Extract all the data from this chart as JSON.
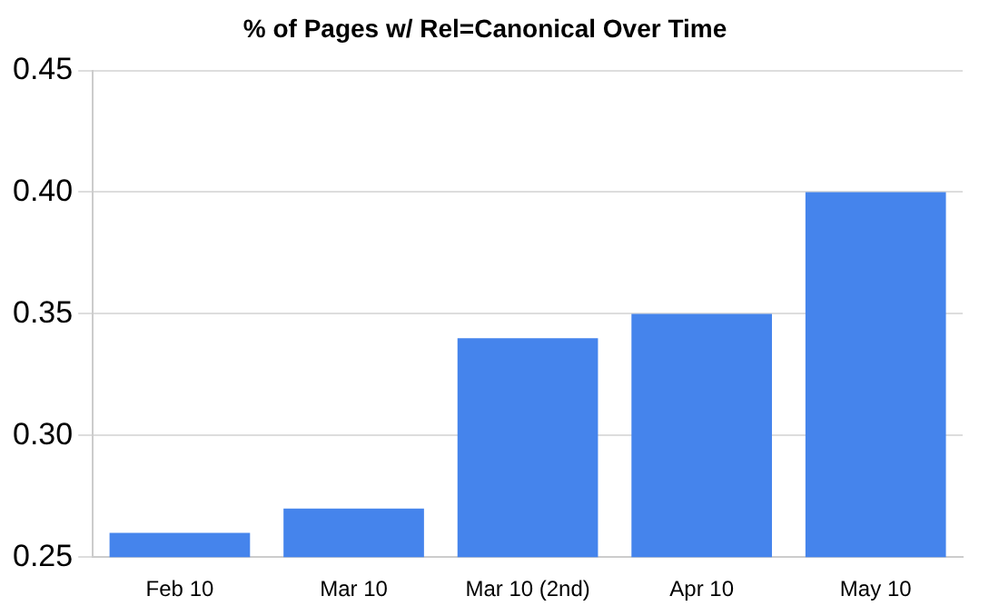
{
  "chart_data": {
    "type": "bar",
    "title": "% of Pages w/ Rel=Canonical Over Time",
    "categories": [
      "Feb 10",
      "Mar 10",
      "Mar 10 (2nd)",
      "Apr 10",
      "May 10"
    ],
    "values": [
      0.26,
      0.27,
      0.34,
      0.35,
      0.4
    ],
    "color": "#4584ec",
    "ylim": [
      0.25,
      0.45
    ],
    "yticks": [
      {
        "value": 0.25,
        "label": "0.25"
      },
      {
        "value": 0.3,
        "label": "0.30"
      },
      {
        "value": 0.35,
        "label": "0.35"
      },
      {
        "value": 0.4,
        "label": "0.40"
      },
      {
        "value": 0.45,
        "label": "0.45"
      }
    ],
    "grid": "y"
  }
}
